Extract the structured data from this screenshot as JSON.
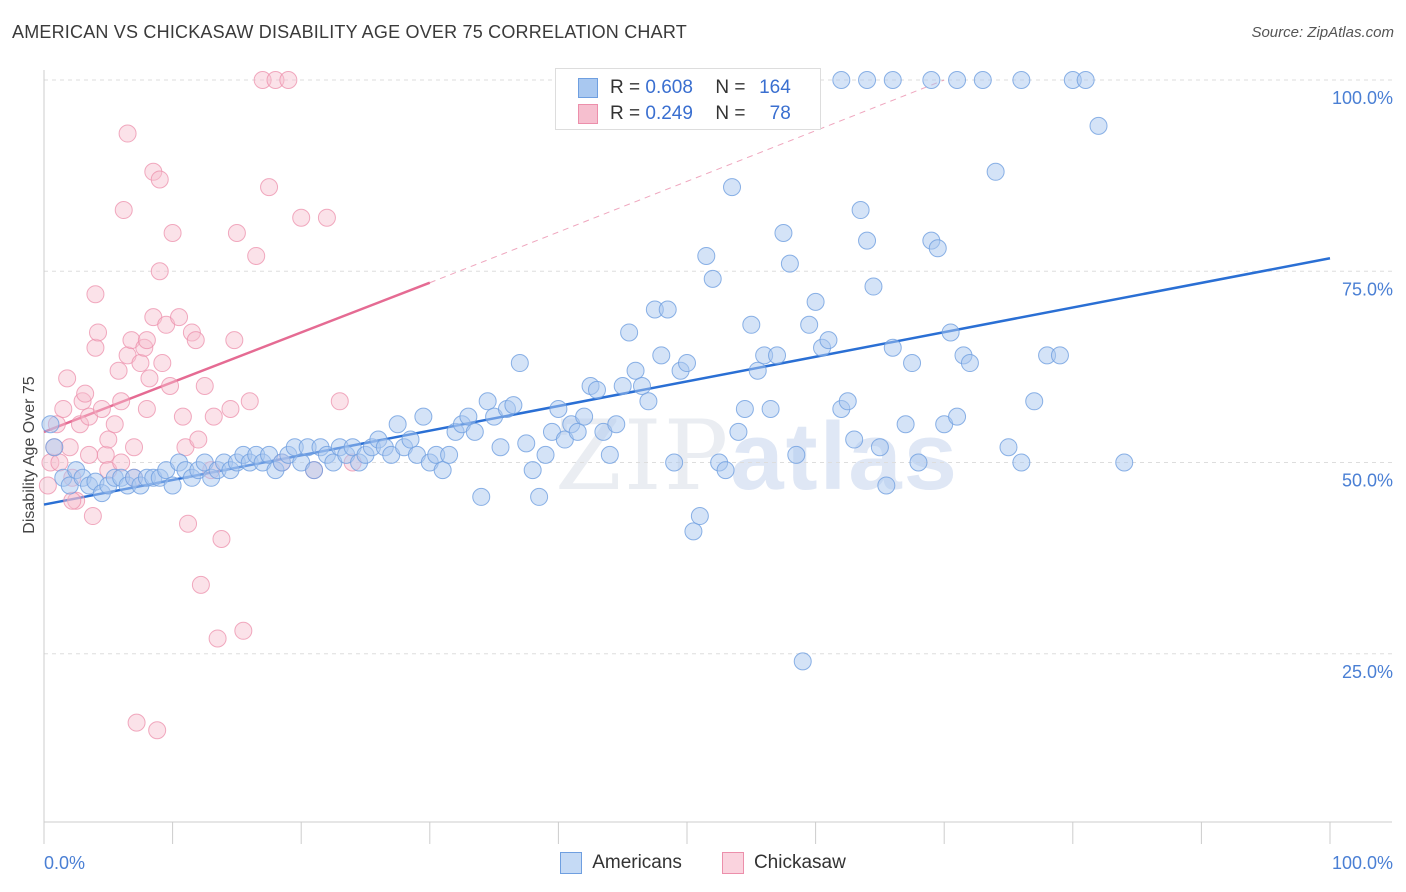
{
  "header": {
    "title": "AMERICAN VS CHICKASAW DISABILITY AGE OVER 75 CORRELATION CHART",
    "source": "Source: ZipAtlas.com"
  },
  "legend": {
    "r_label": "R =",
    "n_label": "N =",
    "americans": {
      "r": "0.608",
      "n": "164"
    },
    "chickasaw": {
      "r": "0.249",
      "n": "78"
    }
  },
  "bottom_legend": {
    "americans": "Americans",
    "chickasaw": "Chickasaw"
  },
  "watermark": {
    "zip": "ZIP",
    "atlas": "atlas"
  },
  "colors": {
    "americans_fill": "#a9c8f0",
    "americans_stroke": "#6f9fe0",
    "americans_line": "#2a6fd4",
    "chickasaw_fill": "#f6bfcf",
    "chickasaw_stroke": "#ec8fab",
    "chickasaw_line": "#e56b93",
    "grid": "#dddddd",
    "tick_label": "#4a7fd4"
  },
  "chart_data": {
    "type": "scatter",
    "title": "AMERICAN VS CHICKASAW DISABILITY AGE OVER 75 CORRELATION CHART",
    "xlabel": "",
    "ylabel": "Disability Age Over 75",
    "xlim": [
      0,
      100
    ],
    "ylim": [
      0,
      105
    ],
    "x_tick_labels": [
      "0.0%",
      "100.0%"
    ],
    "y_tick_labels": [
      "25.0%",
      "50.0%",
      "75.0%",
      "100.0%"
    ],
    "y_ticks": [
      25,
      50,
      75,
      100
    ],
    "grid": true,
    "legend_position": "top-center",
    "series": [
      {
        "name": "Americans",
        "trend": {
          "x": [
            0,
            100
          ],
          "y": [
            44.5,
            76.7
          ]
        },
        "points": [
          [
            0.5,
            55
          ],
          [
            0.8,
            52
          ],
          [
            1.5,
            48
          ],
          [
            2,
            47
          ],
          [
            2.5,
            49
          ],
          [
            3,
            48
          ],
          [
            3.5,
            47
          ],
          [
            4,
            47.5
          ],
          [
            4.5,
            46
          ],
          [
            5,
            47
          ],
          [
            5.5,
            48
          ],
          [
            6,
            48
          ],
          [
            6.5,
            47
          ],
          [
            7,
            48
          ],
          [
            7.5,
            47
          ],
          [
            8,
            48
          ],
          [
            8.5,
            48
          ],
          [
            9,
            48
          ],
          [
            9.5,
            49
          ],
          [
            10,
            47
          ],
          [
            10.5,
            50
          ],
          [
            11,
            49
          ],
          [
            11.5,
            48
          ],
          [
            12,
            49
          ],
          [
            12.5,
            50
          ],
          [
            13,
            48
          ],
          [
            13.5,
            49
          ],
          [
            14,
            50
          ],
          [
            14.5,
            49
          ],
          [
            15,
            50
          ],
          [
            15.5,
            51
          ],
          [
            16,
            50
          ],
          [
            16.5,
            51
          ],
          [
            17,
            50
          ],
          [
            17.5,
            51
          ],
          [
            18,
            49
          ],
          [
            18.5,
            50
          ],
          [
            19,
            51
          ],
          [
            19.5,
            52
          ],
          [
            20,
            50
          ],
          [
            20.5,
            52
          ],
          [
            21,
            49
          ],
          [
            21.5,
            52
          ],
          [
            22,
            51
          ],
          [
            22.5,
            50
          ],
          [
            23,
            52
          ],
          [
            23.5,
            51
          ],
          [
            24,
            52
          ],
          [
            24.5,
            50
          ],
          [
            25,
            51
          ],
          [
            25.5,
            52
          ],
          [
            26,
            53
          ],
          [
            26.5,
            52
          ],
          [
            27,
            51
          ],
          [
            27.5,
            55
          ],
          [
            28,
            52
          ],
          [
            28.5,
            53
          ],
          [
            29,
            51
          ],
          [
            29.5,
            56
          ],
          [
            30,
            50
          ],
          [
            30.5,
            51
          ],
          [
            31,
            49
          ],
          [
            31.5,
            51
          ],
          [
            32,
            54
          ],
          [
            32.5,
            55
          ],
          [
            33,
            56
          ],
          [
            33.5,
            54
          ],
          [
            34,
            45.5
          ],
          [
            34.5,
            58
          ],
          [
            35,
            56
          ],
          [
            35.5,
            52
          ],
          [
            36,
            57
          ],
          [
            36.5,
            57.5
          ],
          [
            37,
            63
          ],
          [
            37.5,
            52.5
          ],
          [
            38,
            49
          ],
          [
            38.5,
            45.5
          ],
          [
            39,
            51
          ],
          [
            39.5,
            54
          ],
          [
            40,
            57
          ],
          [
            40.5,
            53
          ],
          [
            41,
            55
          ],
          [
            41.5,
            54
          ],
          [
            42,
            56
          ],
          [
            42.5,
            60
          ],
          [
            43,
            59.5
          ],
          [
            43.5,
            54
          ],
          [
            44,
            51
          ],
          [
            44.5,
            55
          ],
          [
            45,
            60
          ],
          [
            45.5,
            67
          ],
          [
            46,
            62
          ],
          [
            46.5,
            60
          ],
          [
            47,
            58
          ],
          [
            47.5,
            70
          ],
          [
            48,
            64
          ],
          [
            48.5,
            70
          ],
          [
            49,
            50
          ],
          [
            49.5,
            62
          ],
          [
            50,
            63
          ],
          [
            50.5,
            41
          ],
          [
            51,
            43
          ],
          [
            51.5,
            77
          ],
          [
            52,
            74
          ],
          [
            52.5,
            50
          ],
          [
            53,
            49
          ],
          [
            53.5,
            86
          ],
          [
            54,
            54
          ],
          [
            54.5,
            57
          ],
          [
            55,
            68
          ],
          [
            55.5,
            62
          ],
          [
            56,
            64
          ],
          [
            56.5,
            57
          ],
          [
            57,
            64
          ],
          [
            57.5,
            80
          ],
          [
            58,
            76
          ],
          [
            58.5,
            51
          ],
          [
            59,
            24
          ],
          [
            59.5,
            68
          ],
          [
            60,
            71
          ],
          [
            60.5,
            65
          ],
          [
            61,
            66
          ],
          [
            62,
            57
          ],
          [
            62.5,
            58
          ],
          [
            63,
            53
          ],
          [
            63.5,
            83
          ],
          [
            64,
            79
          ],
          [
            64.5,
            73
          ],
          [
            65,
            52
          ],
          [
            65.5,
            47
          ],
          [
            66,
            65
          ],
          [
            67,
            55
          ],
          [
            67.5,
            63
          ],
          [
            68,
            50
          ],
          [
            69,
            79
          ],
          [
            69.5,
            78
          ],
          [
            70,
            55
          ],
          [
            70.5,
            67
          ],
          [
            71,
            56
          ],
          [
            71.5,
            64
          ],
          [
            72,
            63
          ],
          [
            74,
            88
          ],
          [
            75,
            52
          ],
          [
            76,
            50
          ],
          [
            77,
            58
          ],
          [
            78,
            64
          ],
          [
            79,
            64
          ],
          [
            80,
            100
          ],
          [
            81,
            100
          ],
          [
            82,
            94
          ],
          [
            84,
            50
          ],
          [
            69,
            100
          ],
          [
            71,
            100
          ],
          [
            76,
            100
          ],
          [
            66,
            100
          ],
          [
            64,
            100
          ],
          [
            62,
            100
          ],
          [
            73,
            100
          ]
        ]
      },
      {
        "name": "Chickasaw",
        "trend": {
          "x": [
            0,
            30
          ],
          "y": [
            54,
            73.5
          ]
        },
        "trend_ext": {
          "x": [
            30,
            70
          ],
          "y": [
            73.5,
            100
          ]
        },
        "points": [
          [
            0.3,
            47
          ],
          [
            0.5,
            50
          ],
          [
            0.8,
            52
          ],
          [
            1,
            55
          ],
          [
            1.2,
            50
          ],
          [
            1.5,
            57
          ],
          [
            1.8,
            61
          ],
          [
            2,
            52
          ],
          [
            2.2,
            48
          ],
          [
            2.5,
            45
          ],
          [
            2.8,
            55
          ],
          [
            3,
            58
          ],
          [
            3.2,
            59
          ],
          [
            3.5,
            56
          ],
          [
            3.8,
            43
          ],
          [
            4,
            65
          ],
          [
            4,
            72
          ],
          [
            4.2,
            67
          ],
          [
            4.5,
            57
          ],
          [
            4.8,
            51
          ],
          [
            5,
            49
          ],
          [
            5,
            53
          ],
          [
            5.5,
            55
          ],
          [
            5.8,
            62
          ],
          [
            6,
            50
          ],
          [
            6,
            58
          ],
          [
            6.2,
            83
          ],
          [
            6.5,
            64
          ],
          [
            6.5,
            93
          ],
          [
            6.8,
            66
          ],
          [
            7,
            48
          ],
          [
            7,
            52
          ],
          [
            7.2,
            16
          ],
          [
            7.5,
            63
          ],
          [
            7.8,
            65
          ],
          [
            8,
            66
          ],
          [
            8,
            57
          ],
          [
            8.2,
            61
          ],
          [
            8.5,
            69
          ],
          [
            8.5,
            88
          ],
          [
            8.8,
            15
          ],
          [
            9,
            87
          ],
          [
            9,
            75
          ],
          [
            9.2,
            63
          ],
          [
            9.5,
            68
          ],
          [
            9.8,
            60
          ],
          [
            10,
            80
          ],
          [
            10.5,
            69
          ],
          [
            10.8,
            56
          ],
          [
            11,
            52
          ],
          [
            11.2,
            42
          ],
          [
            11.5,
            67
          ],
          [
            11.8,
            66
          ],
          [
            12,
            53
          ],
          [
            12.2,
            34
          ],
          [
            12.5,
            60
          ],
          [
            13,
            49
          ],
          [
            13.2,
            56
          ],
          [
            13.5,
            27
          ],
          [
            13.8,
            40
          ],
          [
            14.5,
            57
          ],
          [
            14.8,
            66
          ],
          [
            15,
            80
          ],
          [
            15.5,
            28
          ],
          [
            16,
            58
          ],
          [
            16.5,
            77
          ],
          [
            17,
            100
          ],
          [
            17.5,
            86
          ],
          [
            18,
            100
          ],
          [
            18.5,
            50
          ],
          [
            20,
            82
          ],
          [
            21,
            49
          ],
          [
            22,
            82
          ],
          [
            23,
            58
          ],
          [
            19,
            100
          ],
          [
            24,
            50
          ],
          [
            3.5,
            51
          ],
          [
            2.2,
            45
          ]
        ]
      }
    ]
  }
}
